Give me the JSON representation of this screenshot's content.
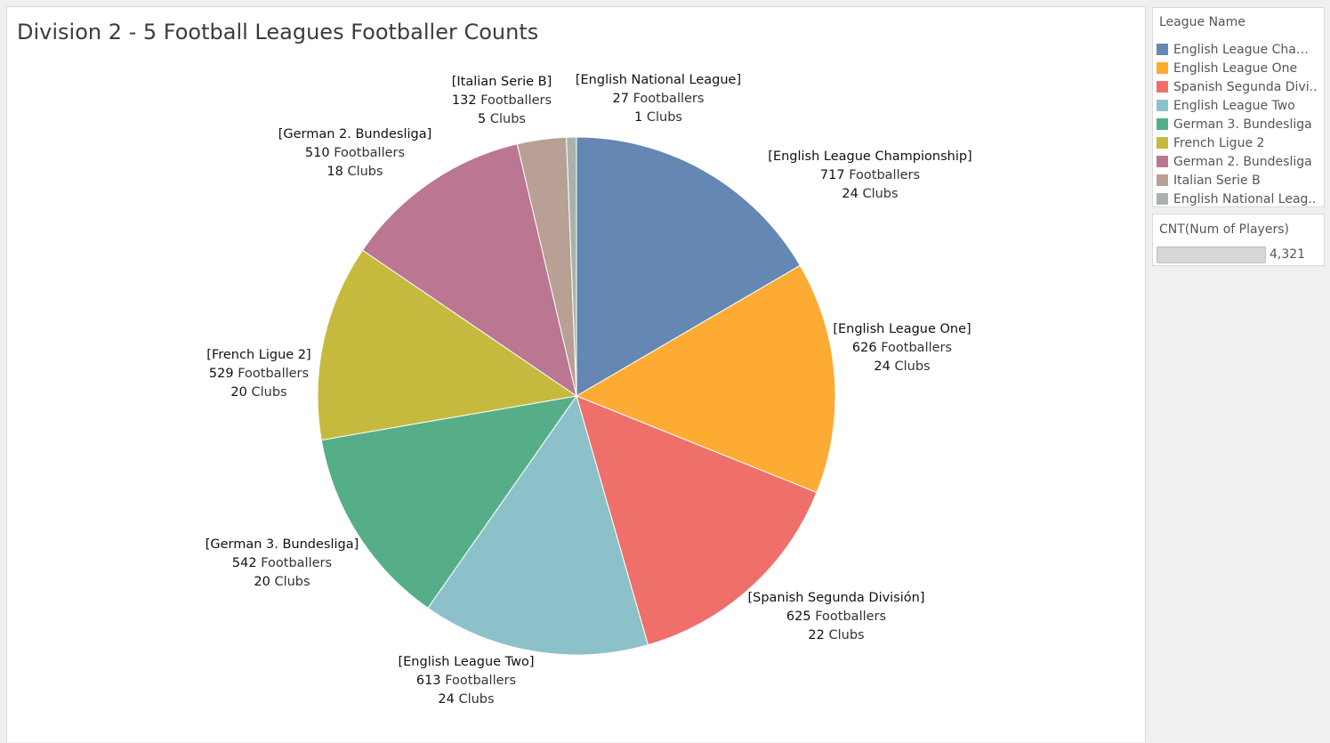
{
  "title": "Division 2 - 5 Football Leagues Footballer Counts",
  "legend": {
    "title": "League Name",
    "items": [
      {
        "label": "English League Champ..",
        "color": "#6487b3"
      },
      {
        "label": "English League One",
        "color": "#fdab33"
      },
      {
        "label": "Spanish Segunda Divi..",
        "color": "#ef6f6a"
      },
      {
        "label": "English League Two",
        "color": "#8dc1ca"
      },
      {
        "label": "German 3. Bundesliga",
        "color": "#56ae89"
      },
      {
        "label": "French Ligue 2",
        "color": "#c5ba3d"
      },
      {
        "label": "German 2. Bundesliga",
        "color": "#bb7692"
      },
      {
        "label": "Italian Serie B",
        "color": "#b8a095"
      },
      {
        "label": "English National Leag..",
        "color": "#aab3ab"
      }
    ]
  },
  "size_legend": {
    "title": "CNT(Num of Players)",
    "value": "4,321"
  },
  "chart_data": {
    "type": "pie",
    "title": "Division 2 - 5 Football Leagues Footballer Counts",
    "unit_players": "Footballers",
    "unit_clubs": "Clubs",
    "slices": [
      {
        "name": "English League Championship",
        "label": "[English League Championship]",
        "players": 717,
        "clubs": 24,
        "color": "#6487b3"
      },
      {
        "name": "English League One",
        "label": "[English League One]",
        "players": 626,
        "clubs": 24,
        "color": "#fdab33"
      },
      {
        "name": "Spanish Segunda División",
        "label": "[Spanish Segunda División]",
        "players": 625,
        "clubs": 22,
        "color": "#ef6f6a"
      },
      {
        "name": "English League Two",
        "label": "[English League Two]",
        "players": 613,
        "clubs": 24,
        "color": "#8dc1ca"
      },
      {
        "name": "German 3. Bundesliga",
        "label": "[German 3. Bundesliga]",
        "players": 542,
        "clubs": 20,
        "color": "#56ae89"
      },
      {
        "name": "French Ligue 2",
        "label": "[French Ligue 2]",
        "players": 529,
        "clubs": 20,
        "color": "#c5ba3d"
      },
      {
        "name": "German 2. Bundesliga",
        "label": "[German 2. Bundesliga]",
        "players": 510,
        "clubs": 18,
        "color": "#bb7692"
      },
      {
        "name": "Italian Serie B",
        "label": "[Italian Serie B]",
        "players": 132,
        "clubs": 5,
        "color": "#b8a095"
      },
      {
        "name": "English National League",
        "label": "[English National League]",
        "players": 27,
        "clubs": 1,
        "color": "#aab3ab"
      }
    ],
    "total_players": "4,321",
    "start_angle": "12 o'clock",
    "direction": "clockwise"
  }
}
